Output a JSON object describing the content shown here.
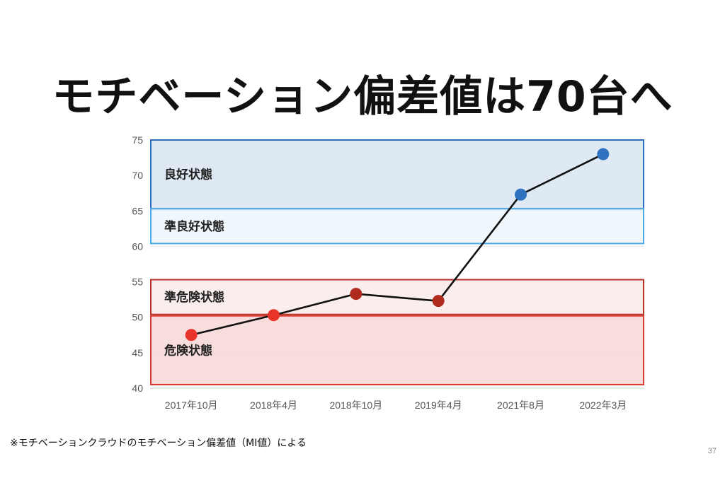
{
  "slide": {
    "title": "モチベーション偏差値は70台へ",
    "footnote": "※モチベーションクラウドのモチベーション偏差値（MI値）による",
    "page_number": "37"
  },
  "chart_data": {
    "type": "line",
    "title": "",
    "xlabel": "",
    "ylabel": "",
    "ylim": [
      40,
      75
    ],
    "yticks": [
      40,
      45,
      50,
      55,
      60,
      65,
      70,
      75
    ],
    "grid": true,
    "categories": [
      "2017年10月",
      "2018年4月",
      "2018年10月",
      "2019年4月",
      "2021年8月",
      "2022年3月"
    ],
    "series": [
      {
        "values": [
          47.5,
          50.3,
          53.3,
          52.3,
          67.3,
          73.0
        ],
        "point_colors": [
          "#e8332a",
          "#e8332a",
          "#b02a1e",
          "#b02a1e",
          "#2f72c0",
          "#2f72c0"
        ],
        "line_color": "#111111"
      }
    ],
    "zones": [
      {
        "label": "良好状態",
        "from": 65.3,
        "to": 75,
        "fill": "#d6e3f1",
        "stroke": "#2f6fbf"
      },
      {
        "label": "準良好状態",
        "from": 60.4,
        "to": 65.3,
        "fill": "#eaf5fd",
        "stroke": "#4aa8e3"
      },
      {
        "label": "準危険状態",
        "from": 50.4,
        "to": 55.3,
        "fill": "#f9e8e8",
        "stroke": "#b83228"
      },
      {
        "label": "危険状態",
        "from": 40.5,
        "to": 50.2,
        "fill": "#f6d3d3",
        "stroke": "#d93a30"
      }
    ]
  }
}
